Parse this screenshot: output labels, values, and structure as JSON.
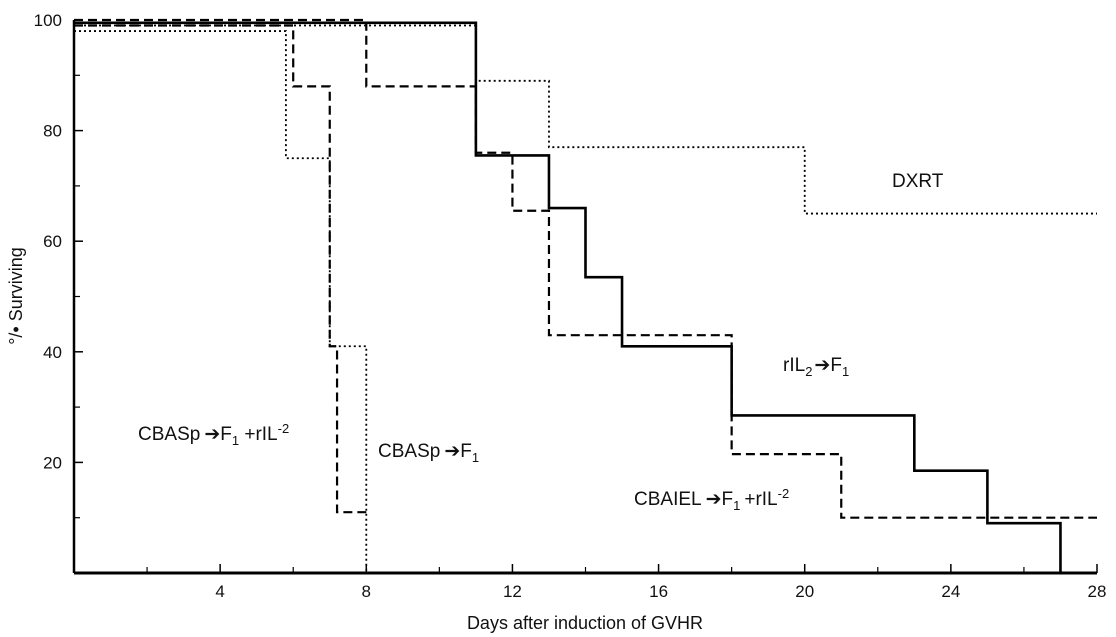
{
  "chart_data": {
    "type": "line",
    "subtype": "survival-step",
    "xlabel": "Days after induction of GVHR",
    "ylabel": "°/• Surviving",
    "xlim": [
      0,
      28
    ],
    "ylim": [
      0,
      100
    ],
    "x_ticks": [
      4,
      8,
      12,
      16,
      20,
      24,
      28
    ],
    "y_ticks": [
      20,
      40,
      60,
      80,
      100
    ],
    "x_minor_ticks": [
      2,
      6,
      10,
      14,
      18,
      22,
      26
    ],
    "y_minor_ticks": [
      10,
      30,
      50,
      70,
      90
    ],
    "grid": false,
    "legend": "none (direct labels)",
    "series": [
      {
        "name": "CBASp→F1 + rIL-2",
        "label": {
          "main": "CBASp",
          "mid": "F",
          "sub": "1",
          "tail": " +rIL",
          "sup": "-2"
        },
        "style": "dashed",
        "steps": [
          [
            0,
            99
          ],
          [
            6,
            88
          ],
          [
            7,
            41
          ],
          [
            7.2,
            11
          ],
          [
            8,
            11
          ]
        ]
      },
      {
        "name": "CBASp→F1",
        "label": {
          "main": "CBASp",
          "mid": "F",
          "sub": "1",
          "tail": "",
          "sup": ""
        },
        "style": "dotted",
        "steps": [
          [
            0,
            98
          ],
          [
            5.8,
            75
          ],
          [
            7,
            41
          ],
          [
            8,
            0
          ]
        ]
      },
      {
        "name": "DXRT",
        "label": {
          "main": "DXRT",
          "mid": "",
          "sub": "",
          "tail": "",
          "sup": ""
        },
        "style": "dotted",
        "steps": [
          [
            0,
            99
          ],
          [
            11,
            89
          ],
          [
            13,
            77
          ],
          [
            20,
            65
          ],
          [
            28,
            65
          ]
        ]
      },
      {
        "name": "rIL2→F1",
        "label": {
          "main": "rIL",
          "sub0": "2",
          "mid": "F",
          "sub": "1",
          "tail": "",
          "sup": ""
        },
        "style": "solid",
        "steps": [
          [
            0,
            99.5
          ],
          [
            11,
            75.5
          ],
          [
            13,
            66
          ],
          [
            14,
            53.5
          ],
          [
            15,
            41
          ],
          [
            18,
            28.5
          ],
          [
            23,
            18.5
          ],
          [
            25,
            9
          ],
          [
            27,
            0
          ]
        ]
      },
      {
        "name": "CBAIEL→F1 + rIL-2",
        "label": {
          "main": "CBAIEL",
          "mid": "F",
          "sub": "1",
          "tail": "+rIL",
          "sup": "-2"
        },
        "style": "dashed",
        "steps": [
          [
            0,
            100
          ],
          [
            8,
            88
          ],
          [
            11,
            76
          ],
          [
            12,
            65.5
          ],
          [
            13,
            43
          ],
          [
            18,
            21.5
          ],
          [
            21,
            10
          ],
          [
            28,
            10
          ]
        ]
      }
    ]
  }
}
